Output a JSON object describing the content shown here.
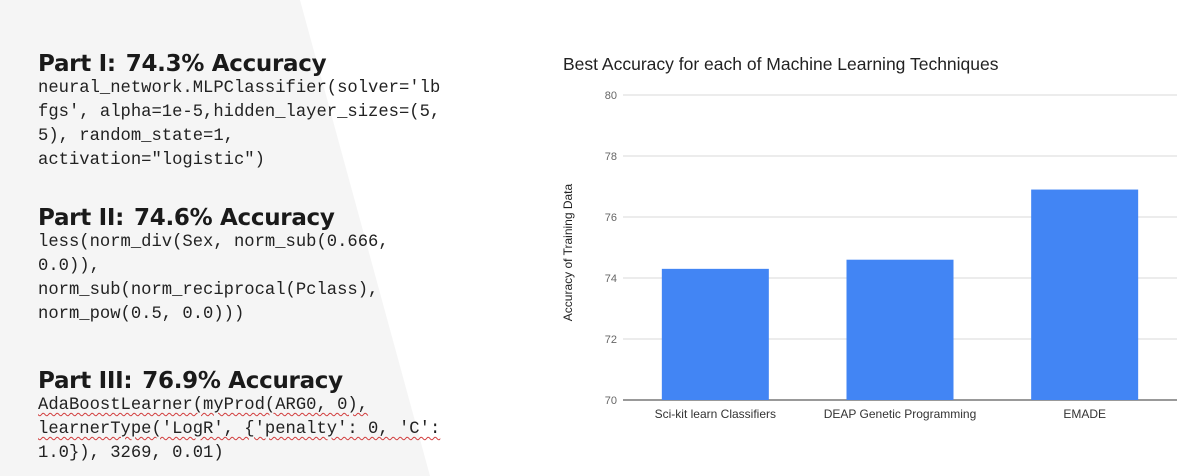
{
  "parts": [
    {
      "heading": "Part I:",
      "accuracy": "74.3% Accuracy",
      "code_lines": [
        "neural_network.MLPClassifier(solver='lb",
        "fgs', alpha=1e-5,hidden_layer_sizes=(5,",
        "5), random_state=1,",
        "activation=\"logistic\")"
      ]
    },
    {
      "heading": "Part II:",
      "accuracy": "74.6% Accuracy",
      "code_lines": [
        "less(norm_div(Sex, norm_sub(0.666,",
        "0.0)),",
        "norm_sub(norm_reciprocal(Pclass),",
        "norm_pow(0.5, 0.0)))"
      ]
    },
    {
      "heading": "Part III:",
      "accuracy": "76.9% Accuracy",
      "code_lines": [
        "AdaBoostLearner(myProd(ARG0, 0),",
        "learnerType('LogR', {'penalty': 0, 'C':",
        "1.0}), 3269, 0.01)"
      ]
    }
  ],
  "chart_data": {
    "type": "bar",
    "title": "Best Accuracy for each of Machine Learning Techniques",
    "xlabel": "",
    "ylabel": "Accuracy of Training Data",
    "categories": [
      "Sci-kit learn Classifiers",
      "DEAP Genetic Programming",
      "EMADE"
    ],
    "values": [
      74.3,
      74.6,
      76.9
    ],
    "ylim": [
      70,
      80
    ],
    "yticks": [
      "70",
      "72",
      "74",
      "76",
      "78",
      "80"
    ],
    "grid": true,
    "bar_color": "#4285f4",
    "gridline_color": "#d9d9d9"
  },
  "colors": {
    "background": "#ffffff",
    "chevron": "#f3f3f3",
    "text": "#1a1a1a"
  }
}
